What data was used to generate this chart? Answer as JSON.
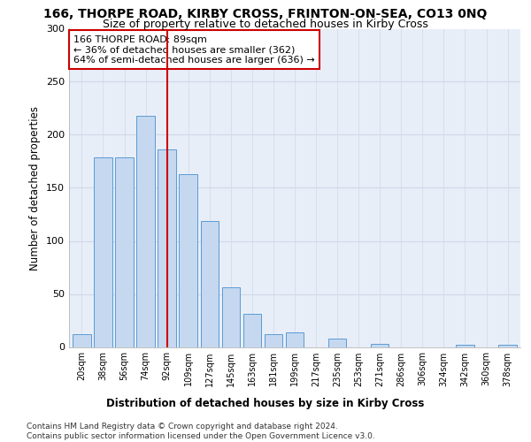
{
  "title": "166, THORPE ROAD, KIRBY CROSS, FRINTON-ON-SEA, CO13 0NQ",
  "subtitle": "Size of property relative to detached houses in Kirby Cross",
  "xlabel_bottom": "Distribution of detached houses by size in Kirby Cross",
  "ylabel": "Number of detached properties",
  "categories": [
    "20sqm",
    "38sqm",
    "56sqm",
    "74sqm",
    "92sqm",
    "109sqm",
    "127sqm",
    "145sqm",
    "163sqm",
    "181sqm",
    "199sqm",
    "217sqm",
    "235sqm",
    "253sqm",
    "271sqm",
    "286sqm",
    "306sqm",
    "324sqm",
    "342sqm",
    "360sqm",
    "378sqm"
  ],
  "values": [
    12,
    179,
    179,
    218,
    186,
    163,
    119,
    56,
    31,
    12,
    14,
    0,
    8,
    0,
    3,
    0,
    0,
    0,
    2,
    0,
    2
  ],
  "bar_color": "#c5d8f0",
  "bar_edge_color": "#5b9bd5",
  "vline_x": 4,
  "vline_color": "#cc0000",
  "annotation_text": "166 THORPE ROAD: 89sqm\n← 36% of detached houses are smaller (362)\n64% of semi-detached houses are larger (636) →",
  "annotation_box_color": "#ffffff",
  "annotation_box_edge": "#cc0000",
  "ylim": [
    0,
    300
  ],
  "yticks": [
    0,
    50,
    100,
    150,
    200,
    250,
    300
  ],
  "grid_color": "#d0d8e8",
  "bg_color": "#e8eef8",
  "footer": "Contains HM Land Registry data © Crown copyright and database right 2024.\nContains public sector information licensed under the Open Government Licence v3.0.",
  "title_fontsize": 10,
  "subtitle_fontsize": 9,
  "footer_fontsize": 6.5
}
